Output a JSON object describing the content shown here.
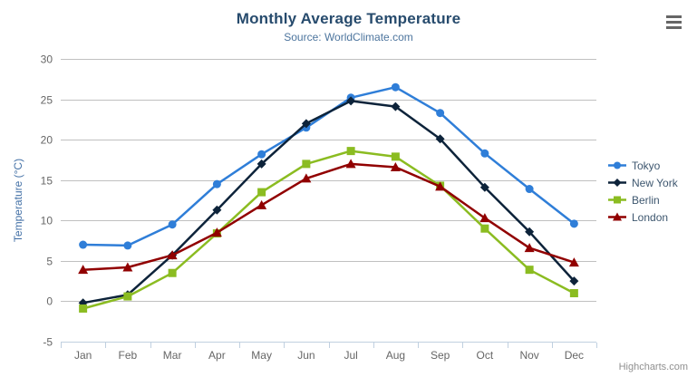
{
  "header": {
    "menu_icon": "hamburger-menu-icon"
  },
  "credits": {
    "label": "Highcharts.com"
  },
  "chart_data": {
    "type": "line",
    "title": "Monthly Average Temperature",
    "subtitle": "Source: WorldClimate.com",
    "categories": [
      "Jan",
      "Feb",
      "Mar",
      "Apr",
      "May",
      "Jun",
      "Jul",
      "Aug",
      "Sep",
      "Oct",
      "Nov",
      "Dec"
    ],
    "xlabel": "",
    "ylabel": "Temperature (°C)",
    "yAxis": {
      "title": "Temperature (°C)",
      "min": -5,
      "max": 30,
      "tick_interval": 5,
      "tick_labels": [
        "-5",
        "0",
        "5",
        "10",
        "15",
        "20",
        "25",
        "30"
      ]
    },
    "grid": "horizontal",
    "legend_position": "right",
    "series": [
      {
        "name": "Tokyo",
        "color": "#2f7ed8",
        "marker": "circle",
        "values": [
          7.0,
          6.9,
          9.5,
          14.5,
          18.2,
          21.5,
          25.2,
          26.5,
          23.3,
          18.3,
          13.9,
          9.6
        ]
      },
      {
        "name": "New York",
        "color": "#0d233a",
        "marker": "diamond",
        "values": [
          -0.2,
          0.8,
          5.7,
          11.3,
          17.0,
          22.0,
          24.8,
          24.1,
          20.1,
          14.1,
          8.6,
          2.5
        ]
      },
      {
        "name": "Berlin",
        "color": "#8bbc21",
        "marker": "square",
        "values": [
          -0.9,
          0.6,
          3.5,
          8.4,
          13.5,
          17.0,
          18.6,
          17.9,
          14.3,
          9.0,
          3.9,
          1.0
        ]
      },
      {
        "name": "London",
        "color": "#910000",
        "marker": "triangle",
        "values": [
          3.9,
          4.2,
          5.7,
          8.5,
          11.9,
          15.2,
          17.0,
          16.6,
          14.2,
          10.3,
          6.6,
          4.8
        ]
      }
    ],
    "colors": {
      "title": "#274b6d",
      "subtitle": "#4d759e",
      "axis_label": "#666666",
      "axis_title": "#4572a7",
      "gridline": "#c0c0c0",
      "axis_line": "#c0d0e0",
      "legend_text": "#3e576f",
      "credits_text": "#909090"
    }
  }
}
